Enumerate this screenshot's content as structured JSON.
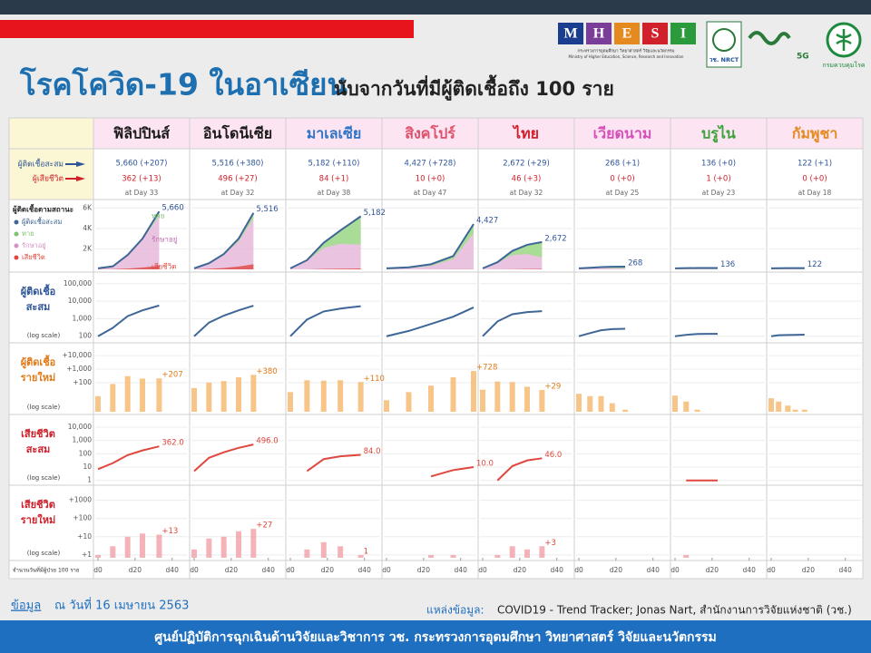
{
  "header": {
    "title": "โรคโควิด-19 ในอาเซียน",
    "subtitle": "นับจากวันที่มีผู้ติดเชื้อถึง 100 ราย",
    "logo_letters": [
      "M",
      "H",
      "E",
      "S",
      "I"
    ],
    "logo_caption": "กระทรวงการอุดมศึกษา วิทยาศาสตร์ วิจัยและนวัตกรรม",
    "logo_caption_en": "Ministry of Higher Education, Science, Research and Innovation",
    "nrct": "วช. NRCT",
    "badge": "5G",
    "dept": "กรมควบคุมโรค"
  },
  "labels": {
    "cases": "ผู้ติดเชื้อสะสม",
    "deaths": "ผู้เสียชีวิต",
    "status": "ผู้ติดเชื้อตามสถานะ",
    "legend": [
      {
        "text": "ผู้ติดเชื้อสะสม",
        "color": "#3e6696"
      },
      {
        "text": "หาย",
        "color": "#7cc46a"
      },
      {
        "text": "รักษาอยู่",
        "color": "#d48fc4"
      },
      {
        "text": "เสียชีวิต",
        "color": "#e0473e"
      }
    ],
    "status_notes": [
      "หาย",
      "รักษาอยู่",
      "เสียชีวิต"
    ],
    "rows": [
      {
        "lines": [
          "ผู้ติดเชื้อ",
          "สะสม"
        ],
        "color": "#2f5597"
      },
      {
        "lines": [
          "ผู้ติดเชื้อ",
          "รายใหม่"
        ],
        "color": "#e07b1a"
      },
      {
        "lines": [
          "เสียชีวิต",
          "สะสม"
        ],
        "color": "#d0202a"
      },
      {
        "lines": [
          "เสียชีวิต",
          "รายใหม่"
        ],
        "color": "#d0202a"
      }
    ],
    "log_scale": "(log scale)",
    "x_row": "จำนวนวันที่มีผู้ป่วย 100 ราย"
  },
  "axes": {
    "status": {
      "log": false,
      "ylim": [
        0,
        6200
      ],
      "yticks": [
        {
          "value": 6000,
          "label": "6K"
        },
        {
          "value": 4000,
          "label": "4K"
        },
        {
          "value": 2000,
          "label": "2K"
        }
      ]
    },
    "cases_log": {
      "log": true,
      "ylim": [
        60,
        200000
      ],
      "yticks": [
        100,
        {
          "value": 1000,
          "label": "1,000"
        },
        {
          "value": 10000,
          "label": "10,000"
        },
        {
          "value": 100000,
          "label": "100,000"
        }
      ]
    },
    "new_cases_log": {
      "log": true,
      "ylim": [
        0.7,
        30000
      ],
      "yticks": [
        {
          "value": 100,
          "label": "+100"
        },
        {
          "value": 1000,
          "label": "+1,000"
        },
        {
          "value": 10000,
          "label": "+10,000"
        }
      ]
    },
    "deaths_log": {
      "log": true,
      "ylim": [
        0.7,
        30000
      ],
      "yticks": [
        1,
        10,
        100,
        {
          "value": 1000,
          "label": "1,000"
        },
        {
          "value": 10000,
          "label": "10,000"
        }
      ]
    },
    "new_deaths_log": {
      "log": true,
      "ylim": [
        0.7,
        3000
      ],
      "yticks": [
        {
          "value": 1,
          "label": "+1"
        },
        {
          "value": 10,
          "label": "+10"
        },
        {
          "value": 100,
          "label": "+100"
        },
        {
          "value": 1000,
          "label": "+1000"
        }
      ]
    },
    "x": {
      "xlim": [
        0,
        47
      ],
      "xticks": [
        {
          "value": 0,
          "label": "d0"
        },
        {
          "value": 20,
          "label": "d20"
        },
        {
          "value": 40,
          "label": "d40"
        }
      ]
    }
  },
  "countries": [
    {
      "name": "ฟิลิปปินส์",
      "color": "#1a1a1a",
      "cases_text": "5,660 (+207)",
      "deaths_text": "362 (+13)",
      "day_text": "at Day 33",
      "x": [
        0,
        8,
        16,
        24,
        33
      ],
      "cases": [
        100,
        300,
        1400,
        3000,
        5660
      ],
      "recovered": [
        2,
        5,
        30,
        100,
        435
      ],
      "deaths": [
        7,
        20,
        80,
        180,
        362
      ],
      "new_cases": [
        10,
        80,
        300,
        200,
        207
      ],
      "new_deaths": [
        1,
        3,
        10,
        15,
        13
      ],
      "end_labels": {
        "cases": "5,660",
        "deaths": "362.0",
        "new_cases": "+207",
        "new_deaths": "+13"
      }
    },
    {
      "name": "อินโดนีเซีย",
      "color": "#1a1a1a",
      "cases_text": "5,516 (+380)",
      "deaths_text": "496 (+27)",
      "day_text": "at Day 32",
      "x": [
        0,
        8,
        16,
        24,
        32
      ],
      "cases": [
        100,
        600,
        1500,
        3000,
        5516
      ],
      "recovered": [
        8,
        30,
        80,
        250,
        548
      ],
      "deaths": [
        5,
        50,
        130,
        280,
        496
      ],
      "new_cases": [
        40,
        100,
        130,
        250,
        380
      ],
      "new_deaths": [
        2,
        8,
        10,
        20,
        27
      ],
      "end_labels": {
        "cases": "5,516",
        "deaths": "496.0",
        "new_cases": "+380",
        "new_deaths": "+27"
      }
    },
    {
      "name": "มาเลเซีย",
      "color": "#2e75c7",
      "cases_text": "5,182 (+110)",
      "deaths_text": "84 (+1)",
      "day_text": "at Day 38",
      "x": [
        0,
        9,
        18,
        27,
        38
      ],
      "cases": [
        100,
        900,
        2600,
        3800,
        5182
      ],
      "recovered": [
        10,
        80,
        500,
        1300,
        2766
      ],
      "deaths": [
        null,
        5,
        40,
        65,
        84
      ],
      "new_cases": [
        20,
        150,
        140,
        150,
        110
      ],
      "new_deaths": [
        null,
        2,
        5,
        3,
        1
      ],
      "end_labels": {
        "cases": "5,182",
        "deaths": "84.0",
        "new_cases": "+110",
        "new_deaths": "1"
      }
    },
    {
      "name": "สิงคโปร์",
      "color": "#e0506a",
      "cases_text": "4,427 (+728)",
      "deaths_text": "10 (+0)",
      "day_text": "at Day 47",
      "x": [
        0,
        12,
        24,
        36,
        47
      ],
      "cases": [
        100,
        200,
        500,
        1300,
        4427
      ],
      "recovered": [
        30,
        100,
        150,
        300,
        901
      ],
      "deaths": [
        null,
        null,
        2,
        6,
        10
      ],
      "new_cases": [
        5,
        20,
        60,
        250,
        728
      ],
      "new_deaths": [
        null,
        null,
        1,
        1,
        null
      ],
      "end_labels": {
        "cases": "4,427",
        "deaths": "10.0",
        "new_cases": "+728"
      }
    },
    {
      "name": "ไทย",
      "color": "#d0202a",
      "cases_text": "2,672 (+29)",
      "deaths_text": "46 (+3)",
      "day_text": "at Day 32",
      "x": [
        0,
        8,
        16,
        24,
        32
      ],
      "cases": [
        100,
        700,
        1800,
        2400,
        2672
      ],
      "recovered": [
        40,
        60,
        400,
        900,
        1497
      ],
      "deaths": [
        null,
        1,
        12,
        32,
        46
      ],
      "new_cases": [
        30,
        120,
        110,
        50,
        29
      ],
      "new_deaths": [
        null,
        1,
        3,
        2,
        3
      ],
      "end_labels": {
        "cases": "2,672",
        "deaths": "46.0",
        "new_cases": "+29",
        "new_deaths": "+3"
      }
    },
    {
      "name": "เวียดนาม",
      "color": "#d64fb8",
      "cases_text": "268 (+1)",
      "deaths_text": "0 (+0)",
      "day_text": "at Day 25",
      "x": [
        0,
        6,
        12,
        18,
        25
      ],
      "cases": [
        100,
        150,
        220,
        255,
        268
      ],
      "recovered": [
        17,
        25,
        80,
        140,
        171
      ],
      "deaths": [
        null,
        null,
        null,
        null,
        null
      ],
      "new_cases": [
        15,
        10,
        10,
        3,
        1
      ],
      "new_deaths": [
        null,
        null,
        null,
        null,
        null
      ],
      "end_labels": {
        "cases": "268"
      }
    },
    {
      "name": "บรูไน",
      "color": "#3aa33a",
      "cases_text": "136 (+0)",
      "deaths_text": "1 (+0)",
      "day_text": "at Day 23",
      "x": [
        0,
        6,
        12,
        18,
        23
      ],
      "cases": [
        100,
        120,
        135,
        136,
        136
      ],
      "recovered": [
        5,
        20,
        60,
        100,
        110
      ],
      "deaths": [
        null,
        1,
        1,
        1,
        1
      ],
      "new_cases": [
        11,
        4,
        1,
        null,
        null
      ],
      "new_deaths": [
        null,
        1,
        null,
        null,
        null
      ],
      "end_labels": {
        "cases": "136"
      }
    },
    {
      "name": "กัมพูชา",
      "color": "#e58a1f",
      "cases_text": "122 (+1)",
      "deaths_text": "0 (+0)",
      "day_text": "at Day 18",
      "x": [
        0,
        4,
        9,
        13,
        18
      ],
      "cases": [
        100,
        114,
        117,
        120,
        122
      ],
      "recovered": [
        10,
        20,
        50,
        70,
        100
      ],
      "deaths": [
        null,
        null,
        null,
        null,
        null
      ],
      "new_cases": [
        7,
        4,
        2,
        1,
        1
      ],
      "new_deaths": [
        null,
        null,
        null,
        null,
        null
      ],
      "end_labels": {
        "cases": "122"
      }
    }
  ],
  "footer": {
    "source_label": "ข้อมูล",
    "date": "ณ วันที่ 16 เมษายน 2563",
    "ref_label": "แหล่งข้อมูล:",
    "ref": "COVID19 - Trend Tracker; Jonas Nart, สำนักงานการวิจัยแห่งชาติ (วช.)",
    "bar": "ศูนย์ปฏิบัติการฉุกเฉินด้านวิจัยและวิชาการ   วช.   กระทรวงการอุดมศึกษา วิทยาศาสตร์ วิจัยและนวัตกรรม"
  }
}
